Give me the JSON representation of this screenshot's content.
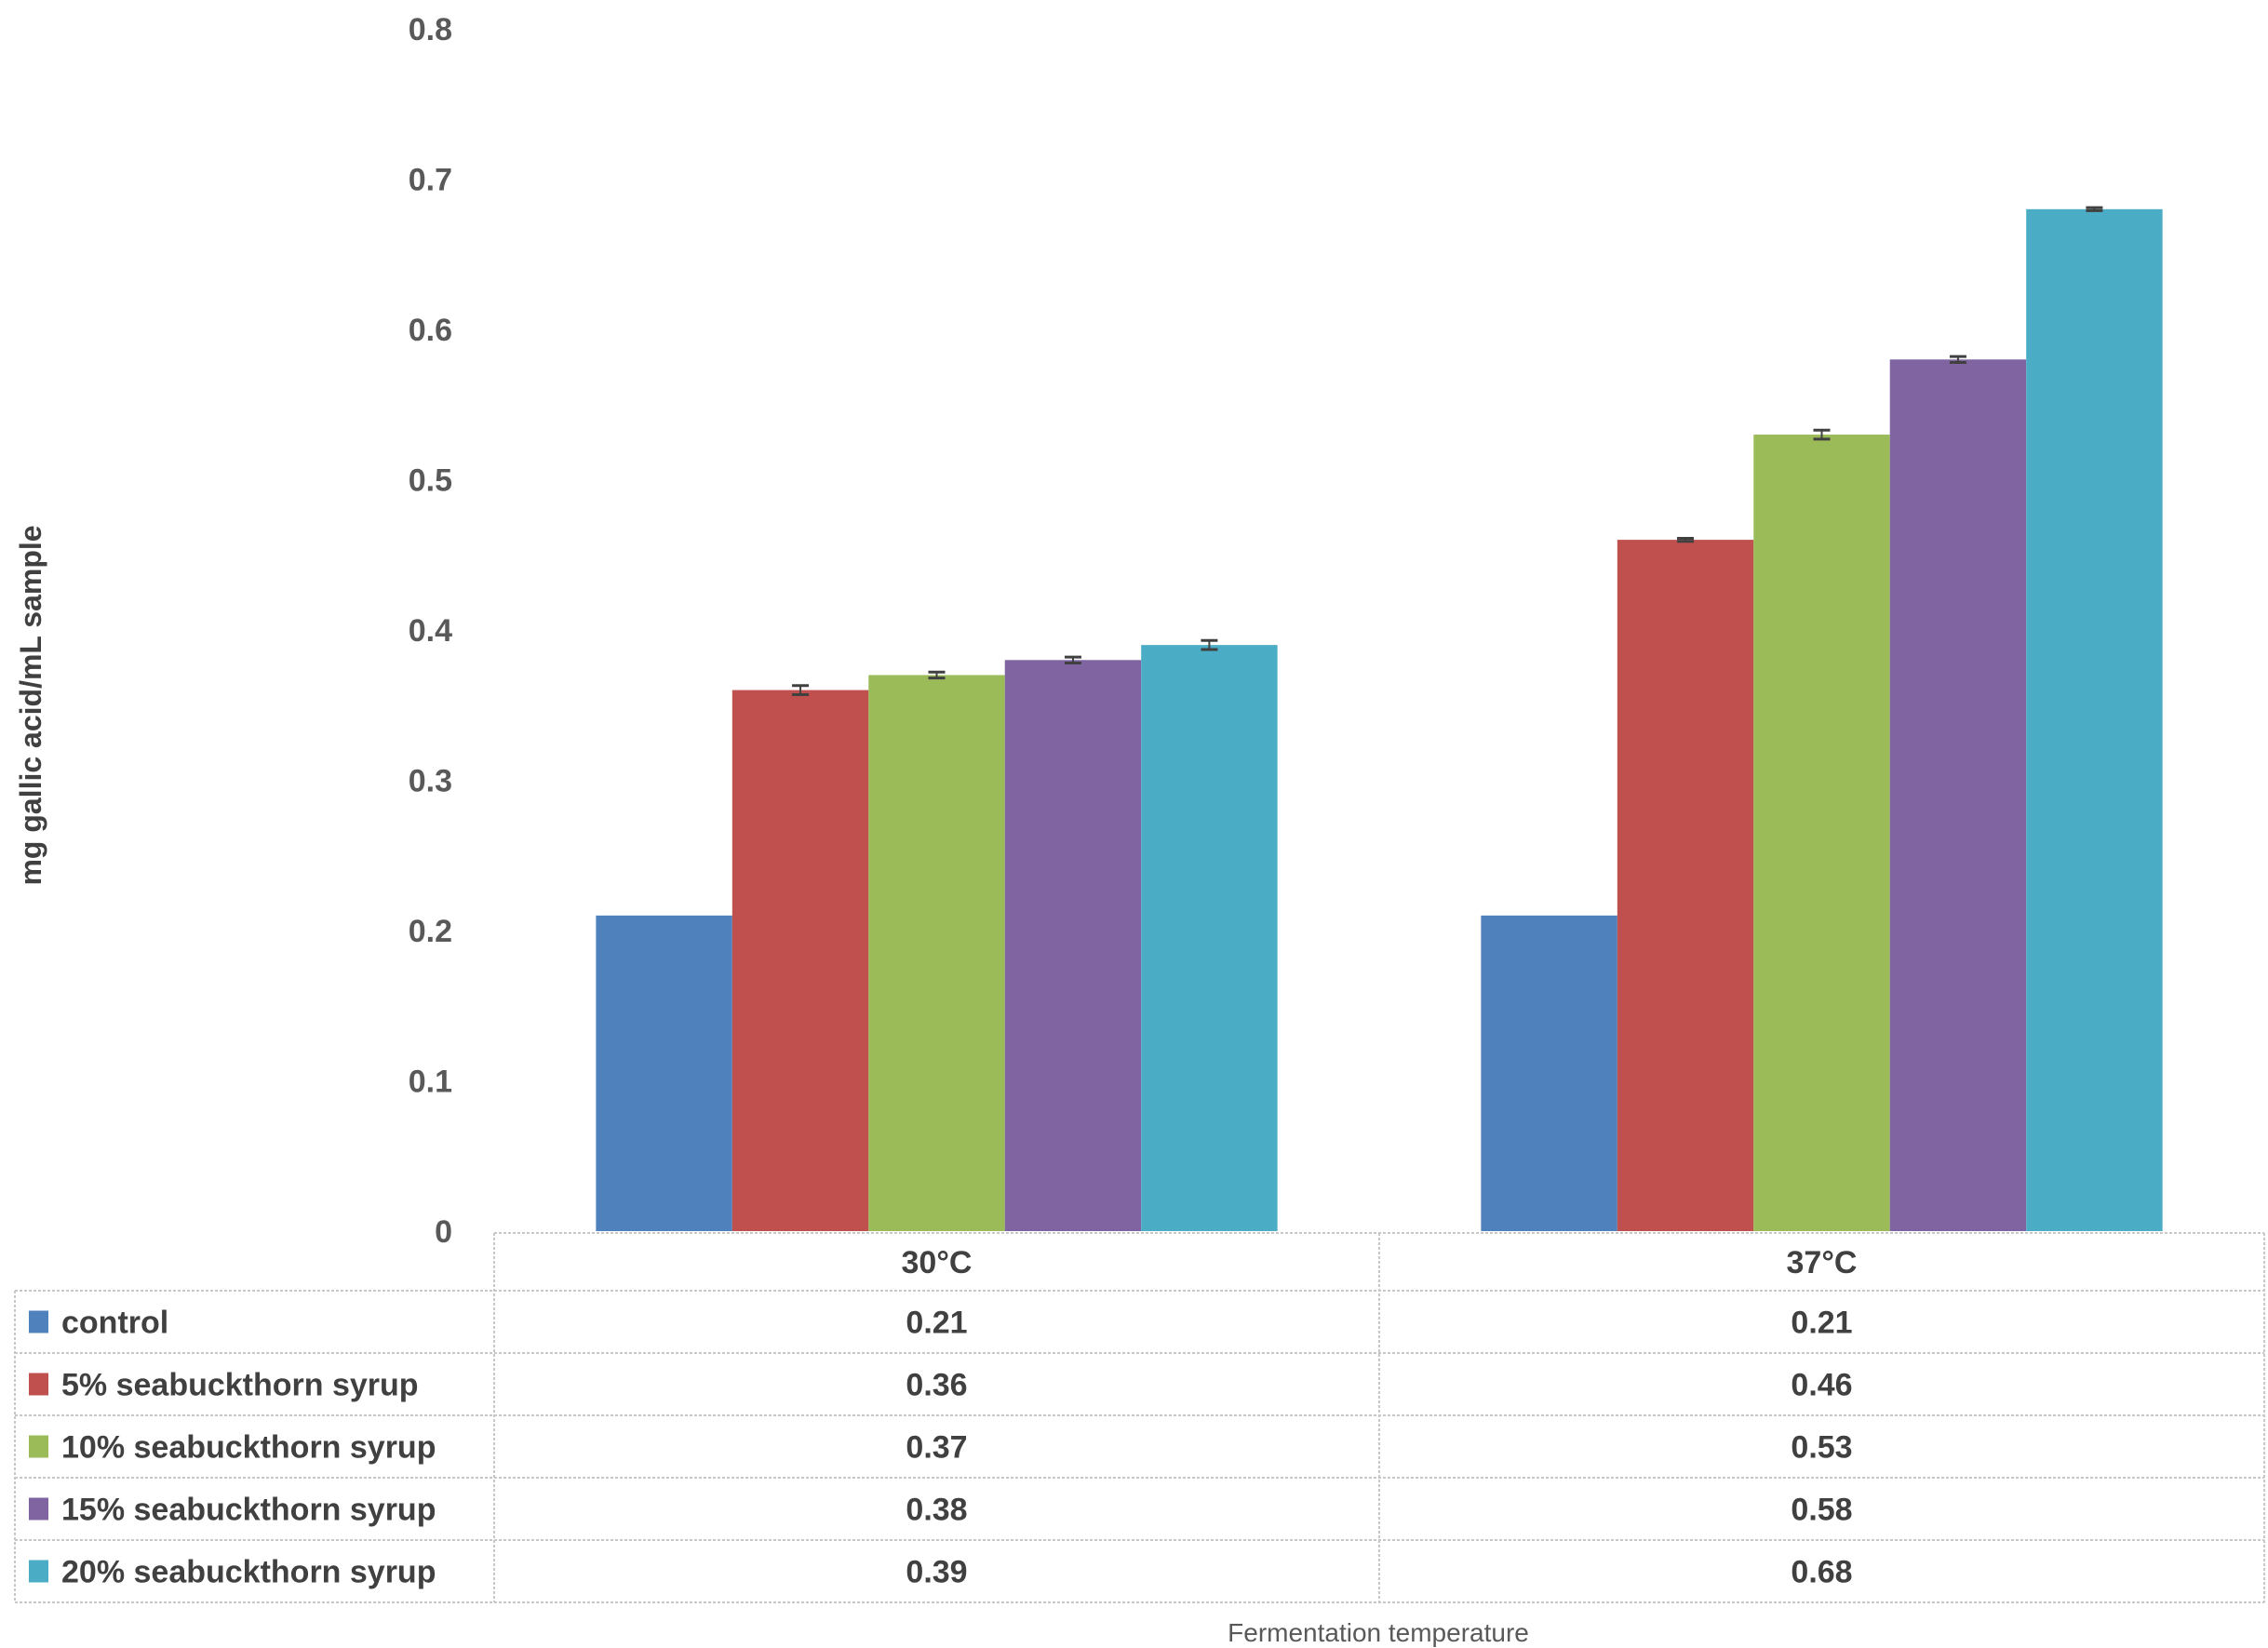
{
  "chart_data": {
    "type": "bar",
    "title": "",
    "xlabel": "Fermentation temperature",
    "ylabel": "mg gallic acid/mL sample",
    "ylim": [
      0,
      0.8
    ],
    "yticks": [
      "0",
      "0.1",
      "0.2",
      "0.3",
      "0.4",
      "0.5",
      "0.6",
      "0.7",
      "0.8"
    ],
    "grid": false,
    "legend": "data-table",
    "categories": [
      "30°C",
      "37°C"
    ],
    "series": [
      {
        "name": "control",
        "color": "#4F81BD",
        "values": [
          0.21,
          0.21
        ],
        "errors": [
          0,
          0
        ]
      },
      {
        "name": "5% seabuckthorn syrup",
        "color": "#C0504D",
        "values": [
          0.36,
          0.46
        ],
        "errors": [
          0.003,
          0.001
        ]
      },
      {
        "name": "10% seabuckthorn syrup",
        "color": "#9BBB59",
        "values": [
          0.37,
          0.53
        ],
        "errors": [
          0.002,
          0.003
        ]
      },
      {
        "name": "15% seabuckthorn syrup",
        "color": "#8064A2",
        "values": [
          0.38,
          0.58
        ],
        "errors": [
          0.002,
          0.002
        ]
      },
      {
        "name": "20% seabuckthorn syrup",
        "color": "#4BACC6",
        "values": [
          0.39,
          0.68
        ],
        "errors": [
          0.003,
          0.001
        ]
      }
    ],
    "table_values": [
      [
        "0.21",
        "0.21"
      ],
      [
        "0.36",
        "0.46"
      ],
      [
        "0.37",
        "0.53"
      ],
      [
        "0.38",
        "0.58"
      ],
      [
        "0.39",
        "0.68"
      ]
    ]
  }
}
